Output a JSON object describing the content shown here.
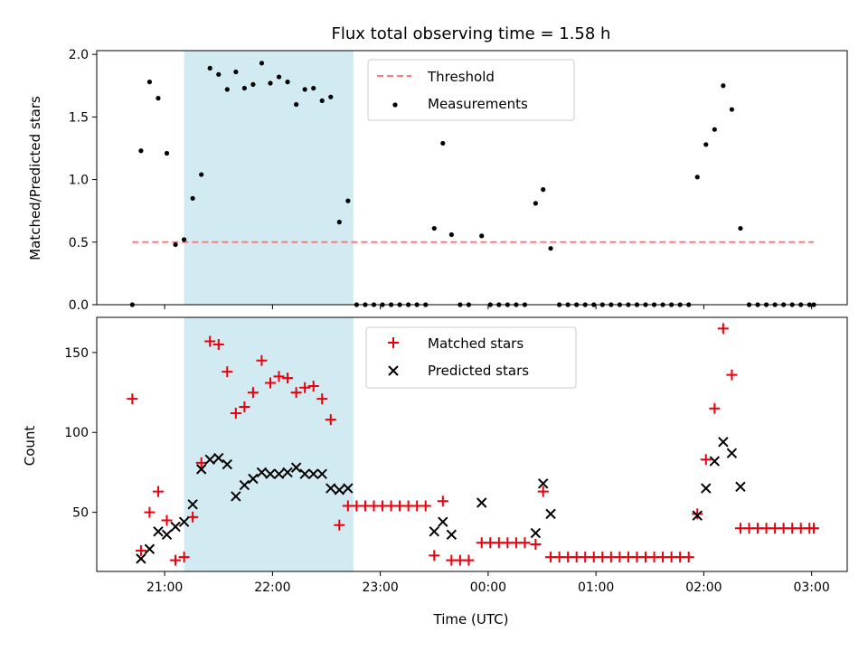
{
  "figure": {
    "title": "Flux total observing time = 1.58 h",
    "xlabel": "Time (UTC)"
  },
  "colors": {
    "shade": "#add8e6",
    "threshold": "#ff7b7b",
    "measurement": "#000000",
    "matched": "#e8000b",
    "predicted": "#000000"
  },
  "chart_data": [
    {
      "type": "scatter",
      "title": "Flux total observing time = 1.58 h",
      "xlabel": "",
      "ylabel": "Matched/Predicted stars",
      "x_unit": "hours since 00:00 UTC (negative = previous day)",
      "xlim": [
        -3.63,
        3.33
      ],
      "ylim": [
        0.0,
        2.03
      ],
      "xticks": [
        {
          "x": -3.0,
          "label": "21:00"
        },
        {
          "x": -2.0,
          "label": "22:00"
        },
        {
          "x": -1.0,
          "label": "23:00"
        },
        {
          "x": 0.0,
          "label": "00:00"
        },
        {
          "x": 1.0,
          "label": "01:00"
        },
        {
          "x": 2.0,
          "label": "02:00"
        },
        {
          "x": 3.0,
          "label": "03:00"
        }
      ],
      "show_xtick_labels": false,
      "yticks": [
        0.0,
        0.5,
        1.0,
        1.5,
        2.0
      ],
      "ytick_labels": [
        "0.0",
        "0.5",
        "1.0",
        "1.5",
        "2.0"
      ],
      "shaded_interval": [
        -2.82,
        -1.25
      ],
      "threshold": {
        "name": "Threshold",
        "y": 0.5,
        "x_range": [
          -3.3,
          3.02
        ]
      },
      "legend": {
        "position": "upper center",
        "entries": [
          "Threshold",
          "Measurements"
        ]
      },
      "series": [
        {
          "name": "Measurements",
          "marker": "dot",
          "points": [
            [
              -3.3,
              0.0
            ],
            [
              -3.22,
              1.23
            ],
            [
              -3.14,
              1.78
            ],
            [
              -3.06,
              1.65
            ],
            [
              -2.98,
              1.21
            ],
            [
              -2.9,
              0.48
            ],
            [
              -2.82,
              0.52
            ],
            [
              -2.74,
              0.85
            ],
            [
              -2.66,
              1.04
            ],
            [
              -2.58,
              1.89
            ],
            [
              -2.5,
              1.84
            ],
            [
              -2.42,
              1.72
            ],
            [
              -2.34,
              1.86
            ],
            [
              -2.26,
              1.73
            ],
            [
              -2.18,
              1.76
            ],
            [
              -2.1,
              1.93
            ],
            [
              -2.02,
              1.77
            ],
            [
              -1.94,
              1.82
            ],
            [
              -1.86,
              1.78
            ],
            [
              -1.78,
              1.6
            ],
            [
              -1.7,
              1.72
            ],
            [
              -1.62,
              1.73
            ],
            [
              -1.54,
              1.63
            ],
            [
              -1.46,
              1.66
            ],
            [
              -1.38,
              0.66
            ],
            [
              -1.3,
              0.83
            ],
            [
              -1.22,
              0.0
            ],
            [
              -1.14,
              0.0
            ],
            [
              -1.06,
              0.0
            ],
            [
              -0.98,
              0.0
            ],
            [
              -0.9,
              0.0
            ],
            [
              -0.82,
              0.0
            ],
            [
              -0.74,
              0.0
            ],
            [
              -0.66,
              0.0
            ],
            [
              -0.58,
              0.0
            ],
            [
              -0.5,
              0.61
            ],
            [
              -0.42,
              1.29
            ],
            [
              -0.34,
              0.56
            ],
            [
              -0.26,
              0.0
            ],
            [
              -0.18,
              0.0
            ],
            [
              -0.06,
              0.55
            ],
            [
              0.02,
              0.0
            ],
            [
              0.1,
              0.0
            ],
            [
              0.18,
              0.0
            ],
            [
              0.26,
              0.0
            ],
            [
              0.34,
              0.0
            ],
            [
              0.44,
              0.81
            ],
            [
              0.51,
              0.92
            ],
            [
              0.58,
              0.45
            ],
            [
              0.66,
              0.0
            ],
            [
              0.74,
              0.0
            ],
            [
              0.82,
              0.0
            ],
            [
              0.9,
              0.0
            ],
            [
              0.98,
              0.0
            ],
            [
              1.06,
              0.0
            ],
            [
              1.14,
              0.0
            ],
            [
              1.22,
              0.0
            ],
            [
              1.3,
              0.0
            ],
            [
              1.38,
              0.0
            ],
            [
              1.46,
              0.0
            ],
            [
              1.54,
              0.0
            ],
            [
              1.62,
              0.0
            ],
            [
              1.7,
              0.0
            ],
            [
              1.78,
              0.0
            ],
            [
              1.86,
              0.0
            ],
            [
              1.94,
              1.02
            ],
            [
              2.02,
              1.28
            ],
            [
              2.1,
              1.4
            ],
            [
              2.18,
              1.75
            ],
            [
              2.26,
              1.56
            ],
            [
              2.34,
              0.61
            ],
            [
              2.42,
              0.0
            ],
            [
              2.5,
              0.0
            ],
            [
              2.58,
              0.0
            ],
            [
              2.66,
              0.0
            ],
            [
              2.74,
              0.0
            ],
            [
              2.82,
              0.0
            ],
            [
              2.9,
              0.0
            ],
            [
              2.98,
              0.0
            ],
            [
              3.02,
              0.0
            ]
          ]
        }
      ]
    },
    {
      "type": "scatter",
      "title": "",
      "xlabel": "Time (UTC)",
      "ylabel": "Count",
      "x_unit": "hours since 00:00 UTC (negative = previous day)",
      "xlim": [
        -3.63,
        3.33
      ],
      "ylim": [
        13.0,
        172.0
      ],
      "xticks": [
        {
          "x": -3.0,
          "label": "21:00"
        },
        {
          "x": -2.0,
          "label": "22:00"
        },
        {
          "x": -1.0,
          "label": "23:00"
        },
        {
          "x": 0.0,
          "label": "00:00"
        },
        {
          "x": 1.0,
          "label": "01:00"
        },
        {
          "x": 2.0,
          "label": "02:00"
        },
        {
          "x": 3.0,
          "label": "03:00"
        }
      ],
      "show_xtick_labels": true,
      "yticks": [
        50,
        100,
        150
      ],
      "ytick_labels": [
        "50",
        "100",
        "150"
      ],
      "shaded_interval": [
        -2.82,
        -1.25
      ],
      "legend": {
        "position": "upper center",
        "entries": [
          "Matched stars",
          "Predicted stars"
        ]
      },
      "series": [
        {
          "name": "Matched stars",
          "marker": "plus",
          "points": [
            [
              -3.3,
              121
            ],
            [
              -3.22,
              26
            ],
            [
              -3.14,
              50
            ],
            [
              -3.06,
              63
            ],
            [
              -2.98,
              45
            ],
            [
              -2.9,
              20
            ],
            [
              -2.82,
              22
            ],
            [
              -2.74,
              47
            ],
            [
              -2.66,
              81
            ],
            [
              -2.58,
              157
            ],
            [
              -2.5,
              155
            ],
            [
              -2.42,
              138
            ],
            [
              -2.34,
              112
            ],
            [
              -2.26,
              116
            ],
            [
              -2.18,
              125
            ],
            [
              -2.1,
              145
            ],
            [
              -2.02,
              131
            ],
            [
              -1.94,
              135
            ],
            [
              -1.86,
              134
            ],
            [
              -1.78,
              125
            ],
            [
              -1.7,
              128
            ],
            [
              -1.62,
              129
            ],
            [
              -1.54,
              121
            ],
            [
              -1.46,
              108
            ],
            [
              -1.38,
              42
            ],
            [
              -1.3,
              54
            ],
            [
              -1.22,
              54
            ],
            [
              -1.14,
              54
            ],
            [
              -1.06,
              54
            ],
            [
              -0.98,
              54
            ],
            [
              -0.9,
              54
            ],
            [
              -0.82,
              54
            ],
            [
              -0.74,
              54
            ],
            [
              -0.66,
              54
            ],
            [
              -0.58,
              54
            ],
            [
              -0.5,
              23
            ],
            [
              -0.42,
              57
            ],
            [
              -0.34,
              20
            ],
            [
              -0.26,
              20
            ],
            [
              -0.18,
              20
            ],
            [
              -0.06,
              31
            ],
            [
              0.02,
              31
            ],
            [
              0.1,
              31
            ],
            [
              0.18,
              31
            ],
            [
              0.26,
              31
            ],
            [
              0.34,
              31
            ],
            [
              0.44,
              30
            ],
            [
              0.51,
              63
            ],
            [
              0.58,
              22
            ],
            [
              0.66,
              22
            ],
            [
              0.74,
              22
            ],
            [
              0.82,
              22
            ],
            [
              0.9,
              22
            ],
            [
              0.98,
              22
            ],
            [
              1.06,
              22
            ],
            [
              1.14,
              22
            ],
            [
              1.22,
              22
            ],
            [
              1.3,
              22
            ],
            [
              1.38,
              22
            ],
            [
              1.46,
              22
            ],
            [
              1.54,
              22
            ],
            [
              1.62,
              22
            ],
            [
              1.7,
              22
            ],
            [
              1.78,
              22
            ],
            [
              1.86,
              22
            ],
            [
              1.94,
              49
            ],
            [
              2.02,
              83
            ],
            [
              2.1,
              115
            ],
            [
              2.18,
              165
            ],
            [
              2.26,
              136
            ],
            [
              2.34,
              40
            ],
            [
              2.42,
              40
            ],
            [
              2.5,
              40
            ],
            [
              2.58,
              40
            ],
            [
              2.66,
              40
            ],
            [
              2.74,
              40
            ],
            [
              2.82,
              40
            ],
            [
              2.9,
              40
            ],
            [
              2.98,
              40
            ],
            [
              3.02,
              40
            ]
          ]
        },
        {
          "name": "Predicted stars",
          "marker": "cross",
          "points": [
            [
              -3.22,
              21
            ],
            [
              -3.14,
              27
            ],
            [
              -3.06,
              38
            ],
            [
              -2.98,
              36
            ],
            [
              -2.9,
              41
            ],
            [
              -2.82,
              44
            ],
            [
              -2.74,
              55
            ],
            [
              -2.66,
              77
            ],
            [
              -2.58,
              83
            ],
            [
              -2.5,
              84
            ],
            [
              -2.42,
              80
            ],
            [
              -2.34,
              60
            ],
            [
              -2.26,
              67
            ],
            [
              -2.18,
              71
            ],
            [
              -2.1,
              75
            ],
            [
              -2.02,
              74
            ],
            [
              -1.94,
              74
            ],
            [
              -1.86,
              75
            ],
            [
              -1.78,
              78
            ],
            [
              -1.7,
              74
            ],
            [
              -1.62,
              74
            ],
            [
              -1.54,
              74
            ],
            [
              -1.46,
              65
            ],
            [
              -1.38,
              64
            ],
            [
              -1.3,
              65
            ],
            [
              -0.5,
              38
            ],
            [
              -0.42,
              44
            ],
            [
              -0.34,
              36
            ],
            [
              -0.06,
              56
            ],
            [
              0.44,
              37
            ],
            [
              0.51,
              68
            ],
            [
              0.58,
              49
            ],
            [
              1.94,
              48
            ],
            [
              2.02,
              65
            ],
            [
              2.1,
              82
            ],
            [
              2.18,
              94
            ],
            [
              2.26,
              87
            ],
            [
              2.34,
              66
            ]
          ]
        }
      ]
    }
  ]
}
